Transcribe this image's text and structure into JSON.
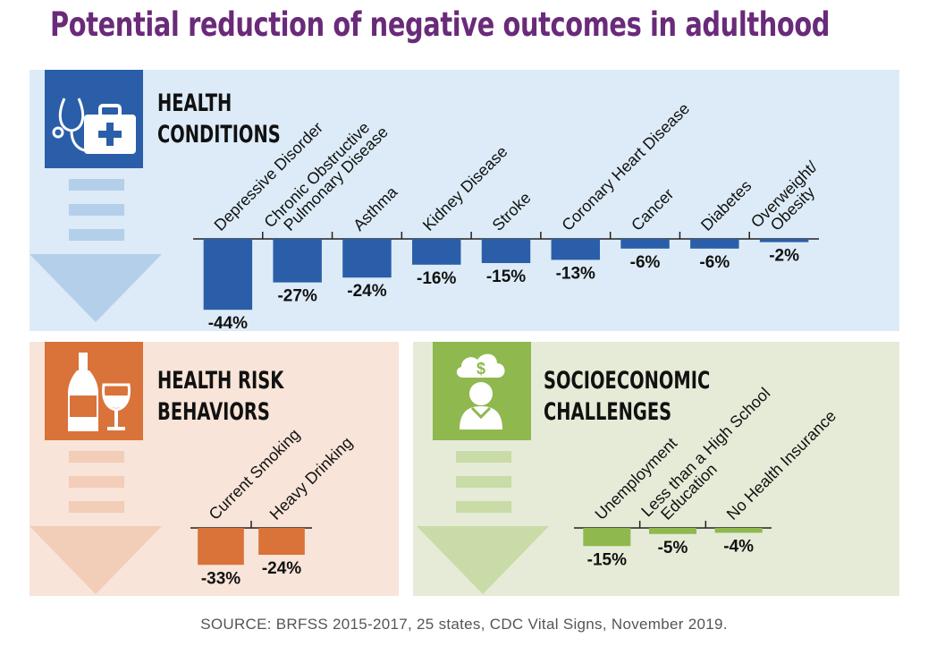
{
  "title": "Potential reduction of negative outcomes in adulthood",
  "source": "SOURCE: BRFSS 2015-2017, 25 states, CDC Vital Signs, November 2019.",
  "colors": {
    "title": "#6a2a7a",
    "health": "#2a5ea8",
    "risk": "#d9733a",
    "socio": "#8fb84e"
  },
  "icons": {
    "health": "stethoscope-medical-kit-icon",
    "risk": "wine-bottle-glass-icon",
    "socio": "person-money-cloud-icon"
  },
  "panels": {
    "health": {
      "heading_line1": "HEALTH",
      "heading_line2": "CONDITIONS"
    },
    "risk": {
      "heading_line1": "HEALTH RISK",
      "heading_line2": "BEHAVIORS"
    },
    "socio": {
      "heading_line1": "SOCIOECONOMIC",
      "heading_line2": "CHALLENGES"
    }
  },
  "chart_data": [
    {
      "type": "bar",
      "title": "HEALTH CONDITIONS",
      "categories": [
        "Depressive Disorder",
        "Chronic Obstructive Pulmonary Disease",
        "Asthma",
        "Kidney Disease",
        "Stroke",
        "Coronary Heart Disease",
        "Cancer",
        "Diabetes",
        "Overweight/ Obesity"
      ],
      "category_lines": [
        [
          "Depressive Disorder"
        ],
        [
          "Chronic Obstructive",
          "Pulmonary Disease"
        ],
        [
          "Asthma"
        ],
        [
          "Kidney Disease"
        ],
        [
          "Stroke"
        ],
        [
          "Coronary Heart Disease"
        ],
        [
          "Cancer"
        ],
        [
          "Diabetes"
        ],
        [
          "Overweight/",
          "Obesity"
        ]
      ],
      "values": [
        -44,
        -27,
        -24,
        -16,
        -15,
        -13,
        -6,
        -6,
        -2
      ],
      "labels": [
        "-44%",
        "-27%",
        "-24%",
        "-16%",
        "-15%",
        "-13%",
        "-6%",
        "-6%",
        "-2%"
      ],
      "color": "#2a5ea8"
    },
    {
      "type": "bar",
      "title": "HEALTH RISK BEHAVIORS",
      "categories": [
        "Current Smoking",
        "Heavy Drinking"
      ],
      "category_lines": [
        [
          "Current Smoking"
        ],
        [
          "Heavy Drinking"
        ]
      ],
      "values": [
        -33,
        -24
      ],
      "labels": [
        "-33%",
        "-24%"
      ],
      "color": "#d9733a"
    },
    {
      "type": "bar",
      "title": "SOCIOECONOMIC CHALLENGES",
      "categories": [
        "Unemployment",
        "Less than a High School Education",
        "No Health Insurance"
      ],
      "category_lines": [
        [
          "Unemployment"
        ],
        [
          "Less than a High School",
          "Education"
        ],
        [
          "No Health Insurance"
        ]
      ],
      "values": [
        -15,
        -5,
        -4
      ],
      "labels": [
        "-15%",
        "-5%",
        "-4%"
      ],
      "color": "#8fb84e"
    }
  ]
}
